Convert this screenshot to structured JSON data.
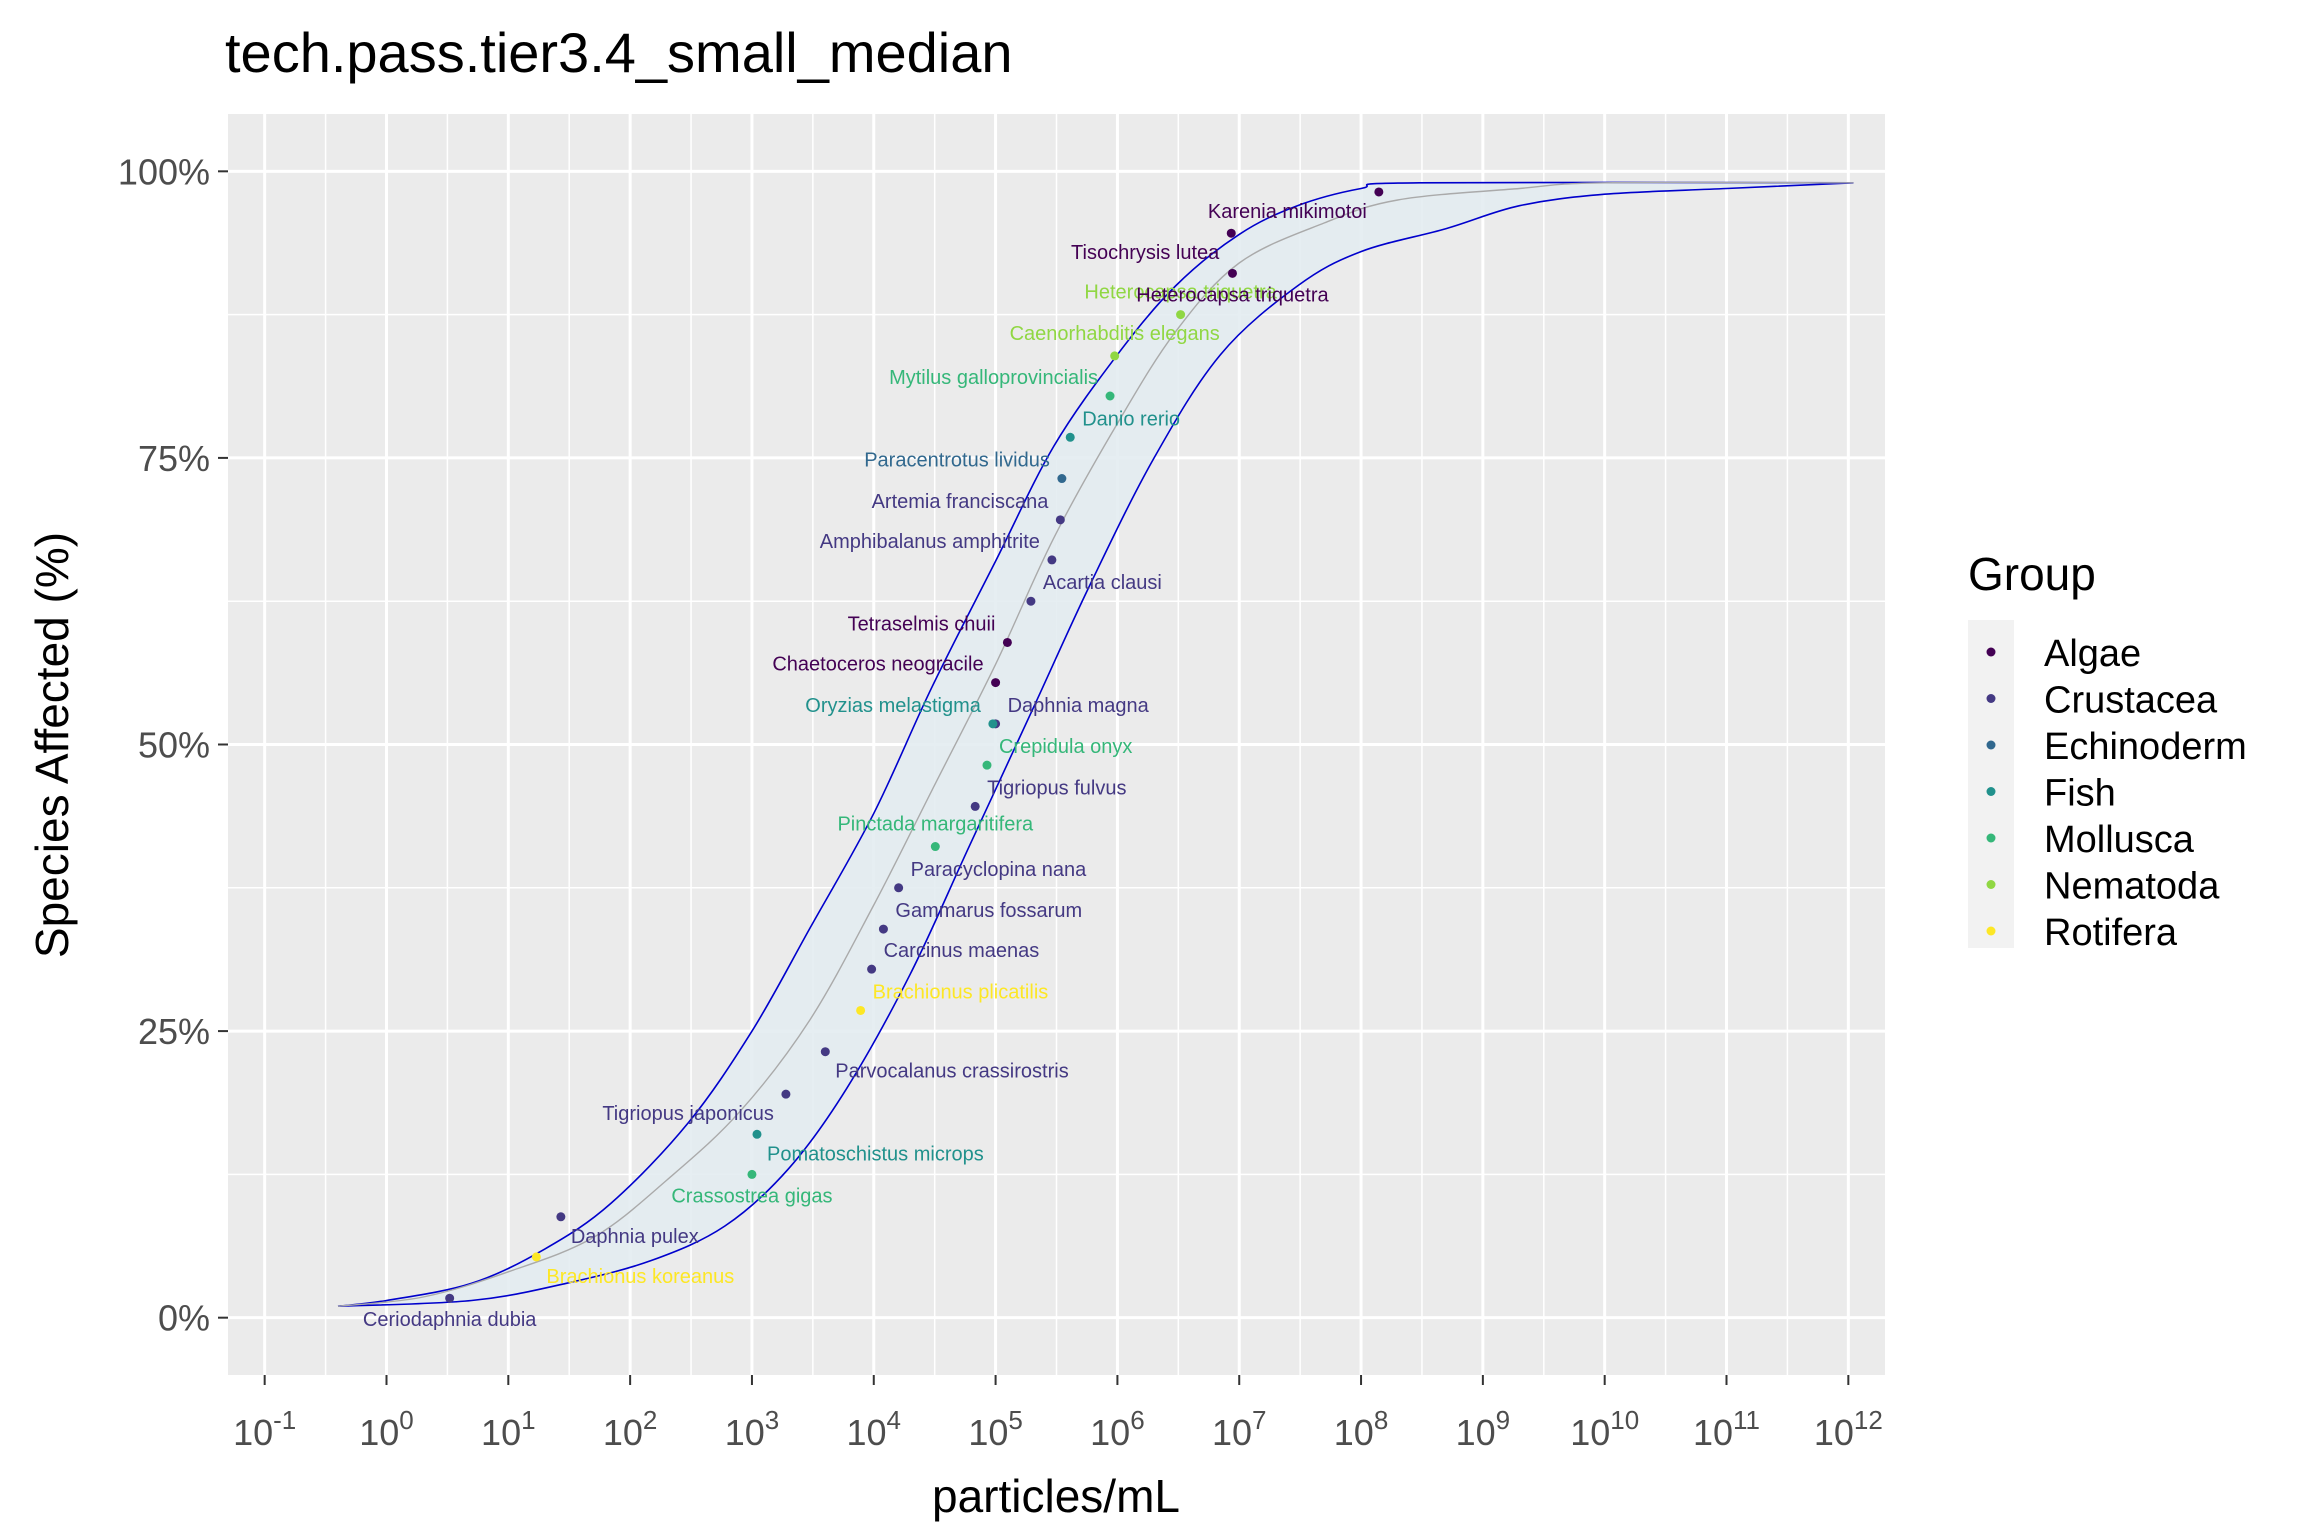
{
  "chart_data": {
    "type": "scatter",
    "title": "tech.pass.tier3.4_small_median",
    "xlabel": "particles/mL",
    "ylabel": "Species Affected (%)",
    "x_scale": "log10",
    "xlim": [
      0.05,
      2000000000000
    ],
    "ylim": [
      -0.05,
      1.05
    ],
    "x_ticks": [
      {
        "value": 0.1,
        "base": "10",
        "exp": "-1"
      },
      {
        "value": 1,
        "base": "10",
        "exp": "0"
      },
      {
        "value": 10,
        "base": "10",
        "exp": "1"
      },
      {
        "value": 100,
        "base": "10",
        "exp": "2"
      },
      {
        "value": 1000,
        "base": "10",
        "exp": "3"
      },
      {
        "value": 10000,
        "base": "10",
        "exp": "4"
      },
      {
        "value": 100000,
        "base": "10",
        "exp": "5"
      },
      {
        "value": 1000000,
        "base": "10",
        "exp": "6"
      },
      {
        "value": 10000000,
        "base": "10",
        "exp": "7"
      },
      {
        "value": 100000000,
        "base": "10",
        "exp": "8"
      },
      {
        "value": 1000000000,
        "base": "10",
        "exp": "9"
      },
      {
        "value": 10000000000,
        "base": "10",
        "exp": "10"
      },
      {
        "value": 100000000000,
        "base": "10",
        "exp": "11"
      },
      {
        "value": 1000000000000,
        "base": "10",
        "exp": "12"
      }
    ],
    "y_ticks": [
      {
        "value": 0,
        "label": "0%"
      },
      {
        "value": 0.25,
        "label": "25%"
      },
      {
        "value": 0.5,
        "label": "50%"
      },
      {
        "value": 0.75,
        "label": "75%"
      },
      {
        "value": 1,
        "label": "100%"
      }
    ],
    "grid": true,
    "legend": {
      "title": "Group",
      "position": "right",
      "entries": [
        {
          "name": "Algae",
          "color": "#440154"
        },
        {
          "name": "Crustacea",
          "color": "#443983"
        },
        {
          "name": "Echinoderm",
          "color": "#31688e"
        },
        {
          "name": "Fish",
          "color": "#21918c"
        },
        {
          "name": "Mollusca",
          "color": "#35b779"
        },
        {
          "name": "Nematoda",
          "color": "#90d743"
        },
        {
          "name": "Rotifera",
          "color": "#fde725"
        }
      ]
    },
    "colors": {
      "Algae": "#440154",
      "Crustacea": "#443983",
      "Echinoderm": "#31688e",
      "Fish": "#21918c",
      "Mollusca": "#35b779",
      "Nematoda": "#90d743",
      "Rotifera": "#fde725",
      "band_outline": "#0000cc",
      "band_fill": "#e3ecf1",
      "median_line": "#aaaaaa",
      "panel": "#ebebeb",
      "grid": "#ffffff"
    },
    "points": [
      {
        "species": "Ceriodaphnia dubia",
        "group": "Crustacea",
        "x": 3.3,
        "y": 0.017,
        "label_pos": "below"
      },
      {
        "species": "Brachionus koreanus",
        "group": "Rotifera",
        "x": 17,
        "y": 0.053,
        "label_pos": "below-right"
      },
      {
        "species": "Daphnia pulex",
        "group": "Crustacea",
        "x": 27,
        "y": 0.088,
        "label_pos": "below-right"
      },
      {
        "species": "Crassostrea gigas",
        "group": "Mollusca",
        "x": 1000,
        "y": 0.125,
        "label_pos": "below"
      },
      {
        "species": "Pomatoschistus microps",
        "group": "Fish",
        "x": 1100,
        "y": 0.16,
        "label_pos": "below-right"
      },
      {
        "species": "Tigriopus japonicus",
        "group": "Crustacea",
        "x": 1900,
        "y": 0.195,
        "label_pos": "below-left"
      },
      {
        "species": "Parvocalanus crassirostris",
        "group": "Crustacea",
        "x": 4000,
        "y": 0.232,
        "label_pos": "below-right"
      },
      {
        "species": "Brachionus plicatilis",
        "group": "Rotifera",
        "x": 7800,
        "y": 0.268,
        "label_pos": "above-right"
      },
      {
        "species": "Carcinus maenas",
        "group": "Crustacea",
        "x": 9600,
        "y": 0.304,
        "label_pos": "above-right"
      },
      {
        "species": "Gammarus fossarum",
        "group": "Crustacea",
        "x": 12000,
        "y": 0.339,
        "label_pos": "above-right"
      },
      {
        "species": "Paracyclopina nana",
        "group": "Crustacea",
        "x": 16000,
        "y": 0.375,
        "label_pos": "above-right"
      },
      {
        "species": "Pinctada margaritifera",
        "group": "Mollusca",
        "x": 32000,
        "y": 0.411,
        "label_pos": "above"
      },
      {
        "species": "Tigriopus fulvus",
        "group": "Crustacea",
        "x": 68000,
        "y": 0.446,
        "label_pos": "above-right"
      },
      {
        "species": "Crepidula onyx",
        "group": "Mollusca",
        "x": 85000,
        "y": 0.482,
        "label_pos": "above-right"
      },
      {
        "species": "Daphnia magna",
        "group": "Crustacea",
        "x": 100000,
        "y": 0.518,
        "label_pos": "above-right"
      },
      {
        "species": "Oryzias melastigma",
        "group": "Fish",
        "x": 95000,
        "y": 0.518,
        "label_pos": "above-left"
      },
      {
        "species": "Chaetoceros neogracile",
        "group": "Algae",
        "x": 100000,
        "y": 0.554,
        "label_pos": "above-left"
      },
      {
        "species": "Tetraselmis chuii",
        "group": "Algae",
        "x": 125000,
        "y": 0.589,
        "label_pos": "above-left"
      },
      {
        "species": "Acartia clausi",
        "group": "Crustacea",
        "x": 195000,
        "y": 0.625,
        "label_pos": "above-right"
      },
      {
        "species": "Amphibalanus amphitrite",
        "group": "Crustacea",
        "x": 290000,
        "y": 0.661,
        "label_pos": "above-left"
      },
      {
        "species": "Artemia franciscana",
        "group": "Crustacea",
        "x": 340000,
        "y": 0.696,
        "label_pos": "above-left"
      },
      {
        "species": "Paracentrotus lividus",
        "group": "Echinoderm",
        "x": 350000,
        "y": 0.732,
        "label_pos": "above-left"
      },
      {
        "species": "Danio rerio",
        "group": "Fish",
        "x": 410000,
        "y": 0.768,
        "label_pos": "above-right"
      },
      {
        "species": "Mytilus galloprovincialis",
        "group": "Mollusca",
        "x": 870000,
        "y": 0.804,
        "label_pos": "above-left"
      },
      {
        "species": "Caenorhabditis elegans",
        "group": "Nematoda",
        "x": 950000,
        "y": 0.839,
        "label_pos": "above"
      },
      {
        "species": "Heterocapsa triquetra",
        "group": "Nematoda",
        "x": 3300000,
        "y": 0.875,
        "label_pos": "above"
      },
      {
        "species": "Heterocapsa triquetra",
        "group": "Algae",
        "x": 8800000,
        "y": 0.911,
        "label_pos": "below"
      },
      {
        "species": "Tisochrysis lutea",
        "group": "Algae",
        "x": 8600000,
        "y": 0.946,
        "label_pos": "below-left"
      },
      {
        "species": "Karenia mikimotoi",
        "group": "Algae",
        "x": 140000000,
        "y": 0.982,
        "label_pos": "below-left"
      }
    ],
    "band_upper": [
      [
        0.4,
        0.01
      ],
      [
        1,
        0.015
      ],
      [
        5,
        0.03
      ],
      [
        20,
        0.06
      ],
      [
        70,
        0.1
      ],
      [
        300,
        0.17
      ],
      [
        1000,
        0.25
      ],
      [
        3000,
        0.34
      ],
      [
        10000,
        0.44
      ],
      [
        30000,
        0.55
      ],
      [
        100000,
        0.66
      ],
      [
        300000,
        0.76
      ],
      [
        1000000,
        0.84
      ],
      [
        3000000,
        0.9
      ],
      [
        10000000,
        0.945
      ],
      [
        30000000,
        0.97
      ],
      [
        100000000,
        0.985
      ],
      [
        300000000,
        0.99
      ],
      [
        1100000000000,
        0.99
      ]
    ],
    "band_lower": [
      [
        0.4,
        0.01
      ],
      [
        5,
        0.015
      ],
      [
        30,
        0.03
      ],
      [
        150,
        0.05
      ],
      [
        600,
        0.08
      ],
      [
        2000,
        0.13
      ],
      [
        6000,
        0.2
      ],
      [
        20000,
        0.3
      ],
      [
        60000,
        0.41
      ],
      [
        200000,
        0.53
      ],
      [
        600000,
        0.64
      ],
      [
        2000000,
        0.75
      ],
      [
        7000000,
        0.84
      ],
      [
        30000000,
        0.9
      ],
      [
        100000000,
        0.93
      ],
      [
        500000000,
        0.95
      ],
      [
        2000000000,
        0.97
      ],
      [
        10000000000,
        0.98
      ],
      [
        100000000000,
        0.985
      ],
      [
        1100000000000,
        0.99
      ]
    ],
    "median_curve": [
      [
        0.4,
        0.01
      ],
      [
        2,
        0.018
      ],
      [
        10,
        0.04
      ],
      [
        50,
        0.07
      ],
      [
        200,
        0.12
      ],
      [
        800,
        0.18
      ],
      [
        3000,
        0.26
      ],
      [
        10000,
        0.36
      ],
      [
        30000,
        0.46
      ],
      [
        100000,
        0.57
      ],
      [
        300000,
        0.68
      ],
      [
        1000000,
        0.78
      ],
      [
        3000000,
        0.86
      ],
      [
        10000000,
        0.92
      ],
      [
        50000000,
        0.955
      ],
      [
        200000000,
        0.975
      ],
      [
        2000000000,
        0.985
      ],
      [
        10000000000,
        0.99
      ],
      [
        1100000000000,
        0.99
      ]
    ]
  }
}
